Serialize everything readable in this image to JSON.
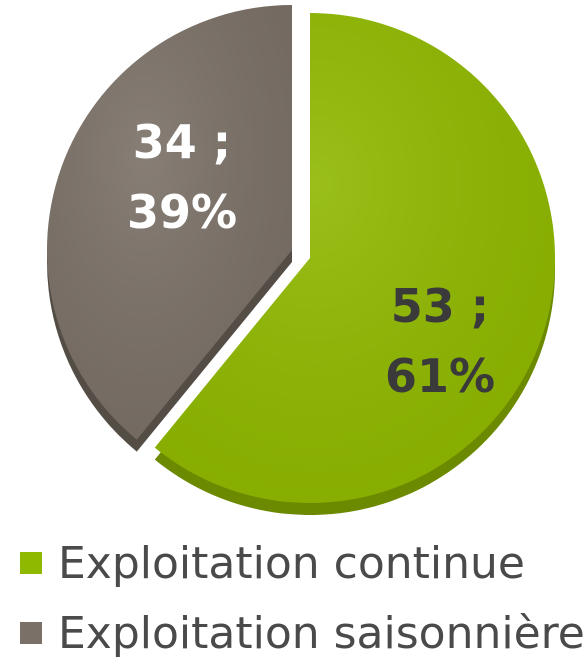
{
  "chart_data": {
    "type": "pie",
    "slices": [
      {
        "name": "Exploitation continue",
        "value": 53,
        "percent": "61%",
        "label_line1": "53 ;",
        "label_line2": "61%",
        "color": "#8fb800",
        "shadow": "#6b8a00",
        "label_color": "#3a3a3a"
      },
      {
        "name": "Exploitation saisonnière",
        "value": 34,
        "percent": "39%",
        "label_line1": "34 ;",
        "label_line2": "39%",
        "color": "#7a7067",
        "shadow": "#544d46",
        "label_color": "#ffffff"
      }
    ],
    "legend_position": "bottom"
  },
  "legend": {
    "items": [
      {
        "label": "Exploitation continue",
        "color": "#8fb800"
      },
      {
        "label": "Exploitation saisonnière",
        "color": "#7a7067"
      }
    ]
  }
}
